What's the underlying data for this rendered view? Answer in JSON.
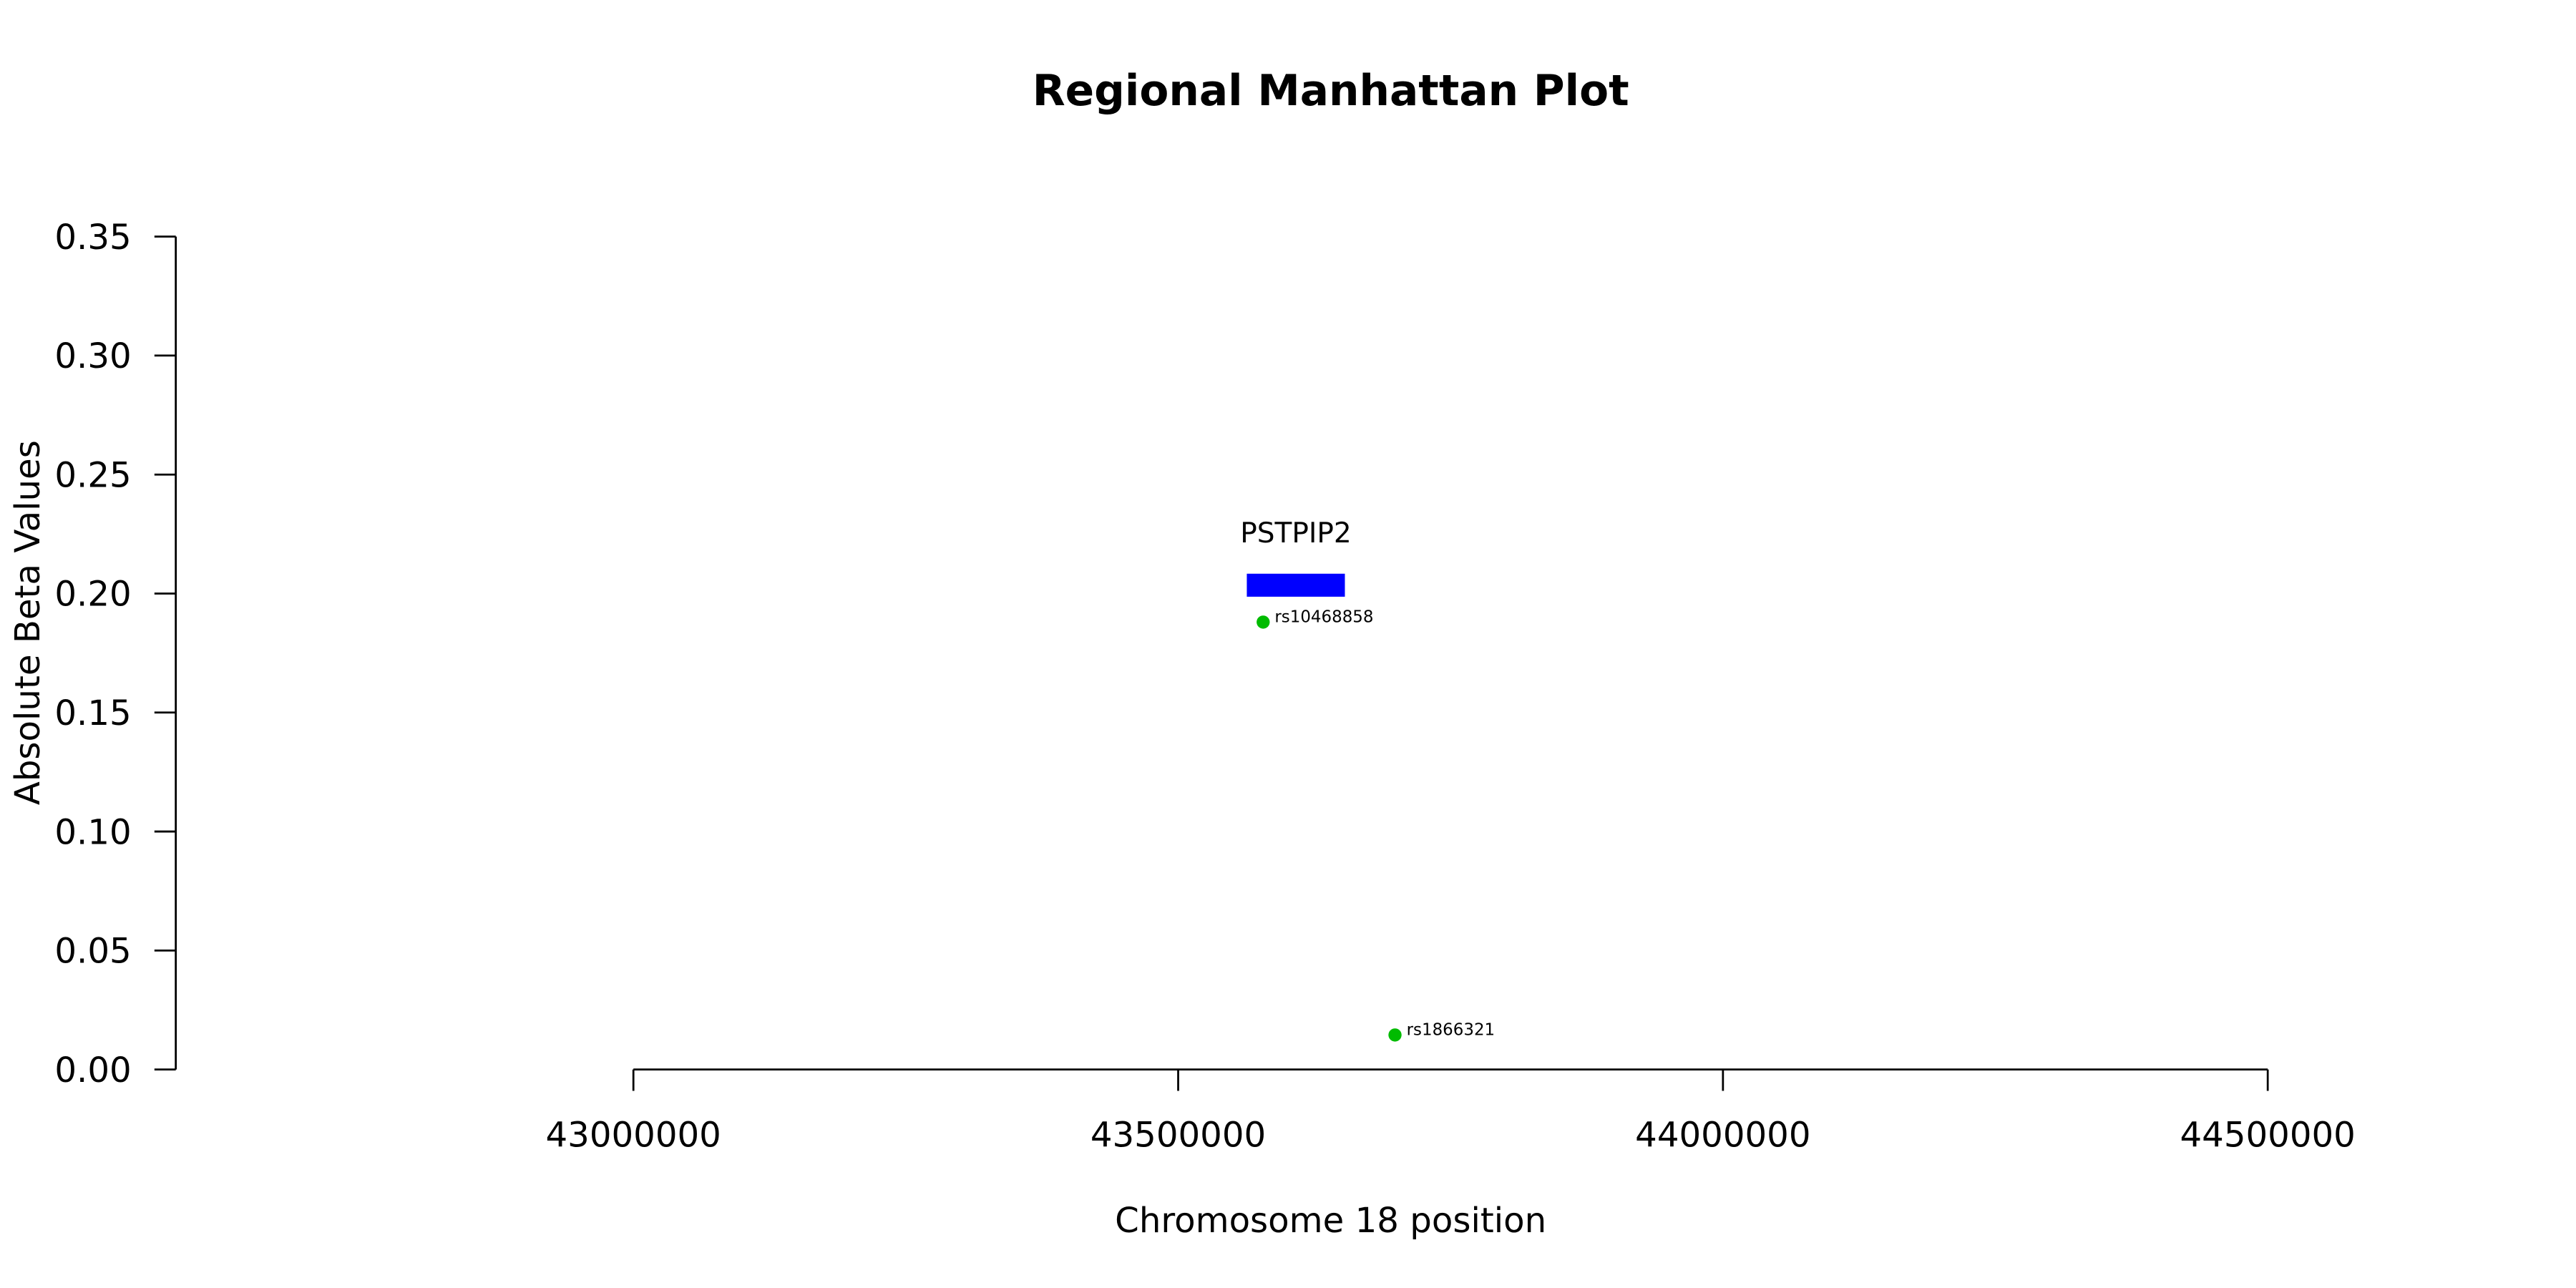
{
  "chart_data": {
    "type": "scatter",
    "title": "Regional Manhattan Plot",
    "x_label": "Chromosome 18 position",
    "y_label": "Absolute Beta Values",
    "x": [
      43578000,
      43699000
    ],
    "values": [
      0.188,
      0.0145
    ],
    "point_labels": [
      "rs10468858",
      "rs1866321"
    ],
    "color": "#00bb00",
    "gene": {
      "name": "PSTPIP2",
      "start": 43563000,
      "end": 43653000,
      "y": 0.2035,
      "color": "#0000ff"
    },
    "xlim": [
      42580000,
      44700000
    ],
    "ylim": [
      0,
      0.35
    ],
    "xticks": [
      43000000,
      43500000,
      44000000,
      44500000
    ],
    "yticks": [
      {
        "value": 0,
        "label": "0.00"
      },
      0.05,
      {
        "value": 0.1,
        "label": "0.10"
      },
      0.15,
      {
        "value": 0.2,
        "label": "0.20"
      },
      0.25,
      {
        "value": 0.3,
        "label": "0.30"
      },
      0.35
    ]
  }
}
